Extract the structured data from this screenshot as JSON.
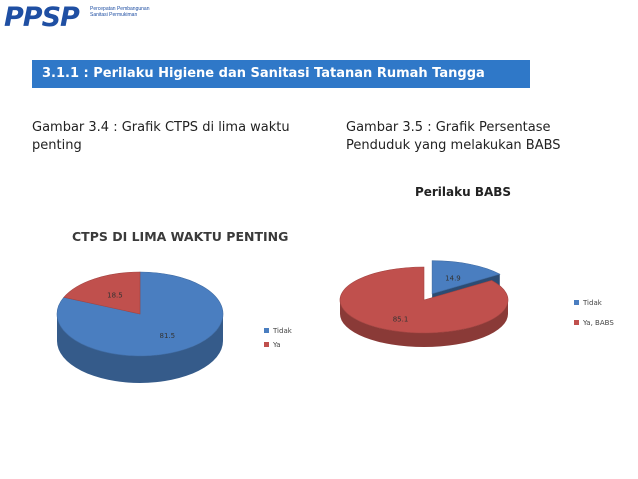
{
  "logo": {
    "text": "PPSP",
    "subtitle": "Percepatan Pembangunan Sanitasi Permukiman"
  },
  "section_title": "3.1.1 : Perilaku Higiene dan Sanitasi Tatanan Rumah Tangga",
  "captions": {
    "left_line1": "Gambar 3.4 : Grafik CTPS di lima waktu",
    "left_line2": "penting",
    "right_line1": "Gambar 3.5 : Grafik Persentase",
    "right_line2": "Penduduk yang melakukan BABS"
  },
  "colors": {
    "title_bar": "#2f78c8",
    "blue": "#4a7ec0",
    "red": "#c0504d"
  },
  "chart_data": [
    {
      "type": "pie",
      "title": "CTPS DI LIMA WAKTU PENTING",
      "categories": [
        "Tidak",
        "Ya"
      ],
      "values": [
        81.5,
        18.5
      ],
      "legend": "right"
    },
    {
      "type": "pie",
      "title": "Perilaku BABS",
      "categories": [
        "Tidak",
        "Ya, BABS"
      ],
      "values": [
        14.9,
        85.1
      ],
      "legend": "right",
      "exploded": "Tidak"
    }
  ]
}
